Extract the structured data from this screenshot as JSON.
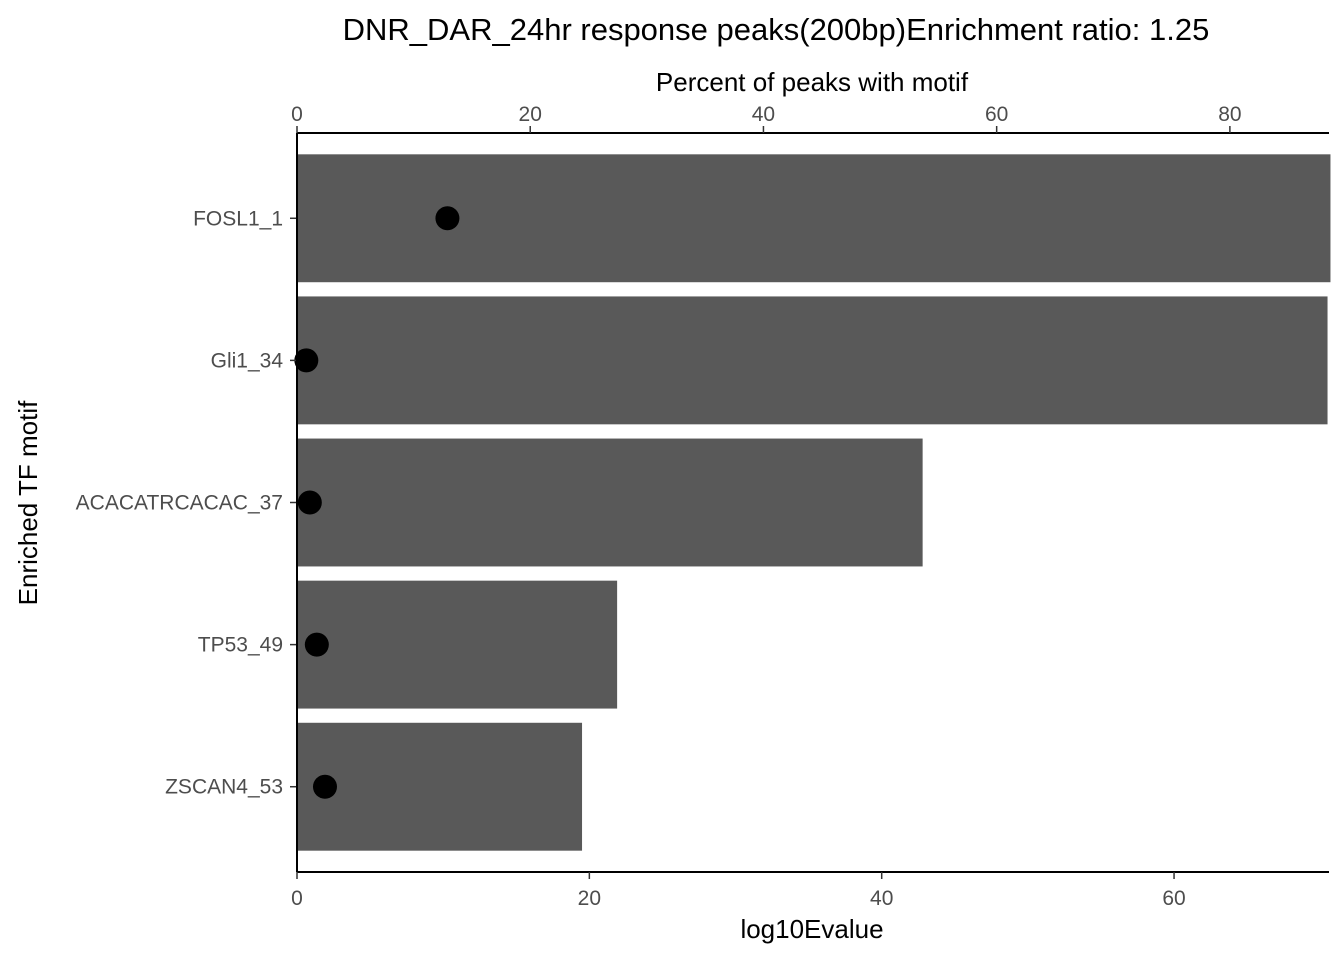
{
  "chart_data": {
    "type": "bar",
    "title": "DNR_DAR_24hr response peaks(200bp)Enrichment ratio: 1.25",
    "ylabel": "Enriched TF motif",
    "xlabel": "log10Evalue",
    "x2label": "Percent of peaks with motif",
    "categories": [
      "FOSL1_1",
      "Gli1_34",
      "ACACATRCACAC_37",
      "TP53_49",
      "ZSCAN4_53"
    ],
    "bar_series": {
      "axis": "bottom",
      "values": [
        70.7,
        70.5,
        42.8,
        21.9,
        19.5
      ],
      "color": "#595959"
    },
    "point_series": {
      "axis": "top",
      "values": [
        12.9,
        0.8,
        1.1,
        1.7,
        2.4
      ],
      "color": "#000000"
    },
    "xlim": [
      0,
      70.6
    ],
    "x_ticks": [
      0,
      20,
      40,
      60
    ],
    "x2lim": [
      0,
      88.5
    ],
    "x2_ticks": [
      0,
      20,
      40,
      60,
      80
    ],
    "grid": false,
    "legend": "none"
  }
}
